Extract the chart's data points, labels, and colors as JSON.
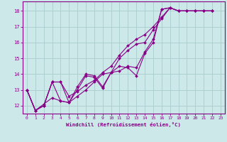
{
  "xlabel": "Windchill (Refroidissement éolien,°C)",
  "background_color": "#cce8e8",
  "line_color": "#880088",
  "grid_color": "#aacccc",
  "spine_color": "#880088",
  "xlim": [
    -0.5,
    23.5
  ],
  "ylim": [
    11.5,
    18.6
  ],
  "yticks": [
    12,
    13,
    14,
    15,
    16,
    17,
    18
  ],
  "xticks": [
    0,
    1,
    2,
    3,
    4,
    5,
    6,
    7,
    8,
    9,
    10,
    11,
    12,
    13,
    14,
    15,
    16,
    17,
    18,
    19,
    20,
    21,
    22,
    23
  ],
  "tick_fontsize": 4.5,
  "xlabel_fontsize": 5.2,
  "series": [
    [
      13.0,
      11.7,
      12.0,
      13.5,
      12.3,
      12.2,
      13.0,
      13.9,
      13.8,
      13.1,
      14.1,
      14.5,
      14.4,
      13.9,
      15.3,
      16.0,
      18.1,
      18.2,
      18.0,
      18.0,
      18.0,
      18.0,
      18.0
    ],
    [
      13.0,
      11.7,
      12.1,
      12.5,
      12.3,
      12.2,
      13.2,
      14.0,
      13.9,
      13.2,
      14.1,
      14.2,
      14.5,
      14.4,
      15.4,
      16.2,
      18.1,
      18.2,
      18.0,
      18.0,
      18.0,
      18.0,
      18.0
    ],
    [
      13.0,
      11.7,
      12.0,
      13.5,
      13.5,
      12.2,
      12.6,
      13.0,
      13.5,
      14.0,
      14.1,
      15.0,
      15.5,
      15.9,
      16.0,
      16.8,
      17.5,
      18.2,
      18.0,
      18.0,
      18.0,
      18.0,
      18.0
    ],
    [
      13.0,
      11.7,
      12.0,
      13.5,
      13.5,
      12.6,
      12.9,
      13.3,
      13.6,
      14.1,
      14.5,
      15.2,
      15.8,
      16.2,
      16.5,
      17.0,
      17.6,
      18.2,
      18.0,
      18.0,
      18.0,
      18.0,
      18.0
    ]
  ],
  "x_data": [
    0,
    1,
    2,
    3,
    4,
    5,
    6,
    7,
    8,
    9,
    10,
    11,
    12,
    13,
    14,
    15,
    16,
    17,
    18,
    19,
    20,
    21,
    22
  ]
}
